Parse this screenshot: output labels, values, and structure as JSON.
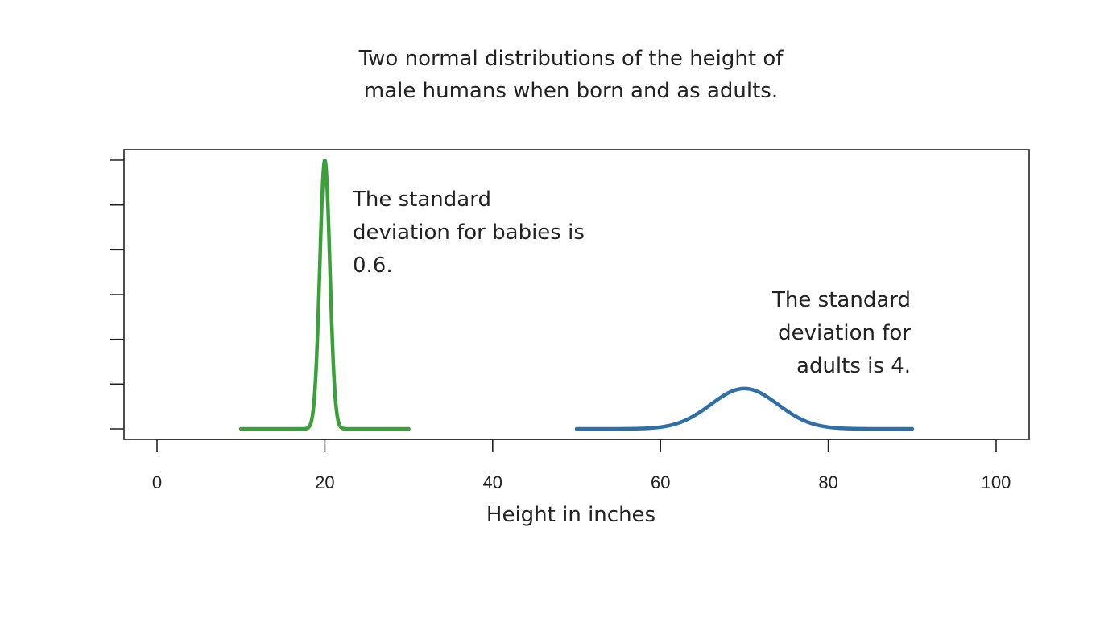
{
  "chart_data": {
    "type": "line",
    "title_lines": [
      "Two normal distributions of the height of",
      "male humans when born and as adults."
    ],
    "xlabel": "Height in inches",
    "ylabel": "",
    "xlim": [
      0,
      100
    ],
    "x_ticks": [
      0,
      20,
      40,
      60,
      80,
      100
    ],
    "y_tick_count": 7,
    "grid": false,
    "series": [
      {
        "distribution": "normal",
        "mean": 20,
        "sd": 0.6,
        "x_range": [
          10,
          30
        ],
        "color": "#3aa03a"
      },
      {
        "distribution": "normal",
        "mean": 70,
        "sd": 4,
        "x_range": [
          50,
          90
        ],
        "color": "#2f6fa8"
      }
    ],
    "annotations": [
      {
        "lines": [
          "The standard",
          "deviation for babies is",
          "0.6."
        ],
        "align": "left"
      },
      {
        "lines": [
          "The standard",
          "deviation for",
          "adults is 4."
        ],
        "align": "right"
      }
    ]
  }
}
